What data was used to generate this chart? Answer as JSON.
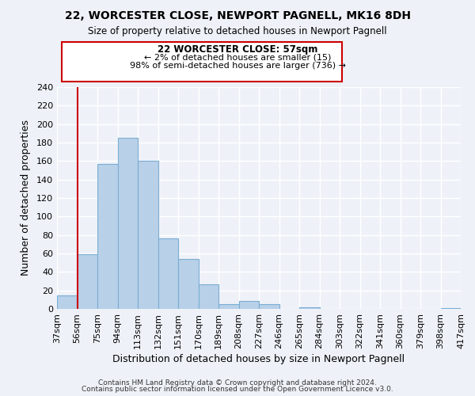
{
  "title1": "22, WORCESTER CLOSE, NEWPORT PAGNELL, MK16 8DH",
  "title2": "Size of property relative to detached houses in Newport Pagnell",
  "xlabel": "Distribution of detached houses by size in Newport Pagnell",
  "ylabel": "Number of detached properties",
  "bar_color": "#b8d0e8",
  "bar_edge_color": "#7aadd4",
  "vline_color": "#cc0000",
  "bar_heights": [
    15,
    59,
    157,
    185,
    160,
    76,
    54,
    27,
    5,
    9,
    5,
    0,
    2,
    0,
    0,
    0,
    0,
    0,
    0,
    1
  ],
  "xtick_labels": [
    "37sqm",
    "56sqm",
    "75sqm",
    "94sqm",
    "113sqm",
    "132sqm",
    "151sqm",
    "170sqm",
    "189sqm",
    "208sqm",
    "227sqm",
    "246sqm",
    "265sqm",
    "284sqm",
    "303sqm",
    "322sqm",
    "341sqm",
    "360sqm",
    "379sqm",
    "398sqm",
    "417sqm"
  ],
  "ylim": [
    0,
    240
  ],
  "yticks": [
    0,
    20,
    40,
    60,
    80,
    100,
    120,
    140,
    160,
    180,
    200,
    220,
    240
  ],
  "annotation_title": "22 WORCESTER CLOSE: 57sqm",
  "annotation_line1": "← 2% of detached houses are smaller (15)",
  "annotation_line2": "98% of semi-detached houses are larger (736) →",
  "footer1": "Contains HM Land Registry data © Crown copyright and database right 2024.",
  "footer2": "Contains public sector information licensed under the Open Government Licence v3.0.",
  "background_color": "#eef2f8",
  "grid_color": "#ffffff",
  "annotation_box_color": "#ffffff",
  "annotation_box_edge": "#cc0000"
}
